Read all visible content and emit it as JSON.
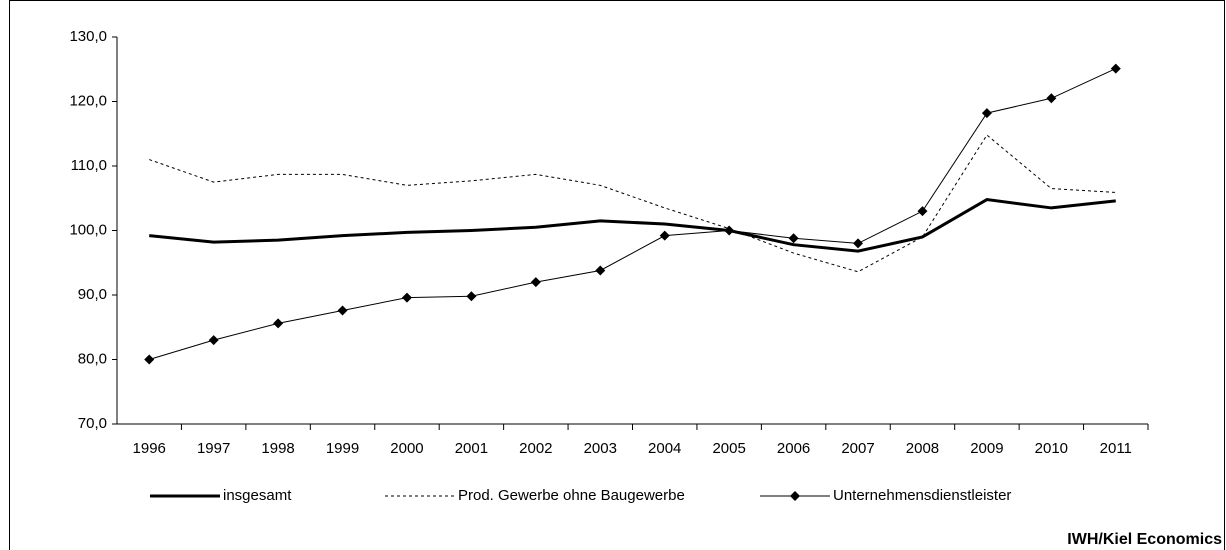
{
  "chart_data": {
    "type": "line",
    "categories": [
      "1996",
      "1997",
      "1998",
      "1999",
      "2000",
      "2001",
      "2002",
      "2003",
      "2004",
      "2005",
      "2006",
      "2007",
      "2008",
      "2009",
      "2010",
      "2011"
    ],
    "series": [
      {
        "name": "insgesamt",
        "color": "#000000",
        "width": 3,
        "dash": "none",
        "marker": "none",
        "values": [
          99.2,
          98.2,
          98.5,
          99.2,
          99.7,
          100.0,
          100.5,
          101.5,
          101.0,
          100.0,
          97.8,
          96.8,
          99.0,
          104.8,
          103.5,
          104.6
        ]
      },
      {
        "name": "Prod. Gewerbe ohne Baugewerbe",
        "color": "#000000",
        "width": 1,
        "dash": "3,3",
        "marker": "none",
        "values": [
          111.0,
          107.5,
          108.7,
          108.7,
          107.0,
          107.7,
          108.7,
          107.0,
          103.5,
          100.3,
          96.5,
          93.6,
          99.0,
          114.8,
          106.5,
          105.9
        ]
      },
      {
        "name": "Unternehmensdienstleister",
        "color": "#000000",
        "width": 1,
        "dash": "none",
        "marker": "diamond",
        "values": [
          80.0,
          83.0,
          85.6,
          87.6,
          89.6,
          89.8,
          92.0,
          93.8,
          99.2,
          100.0,
          98.8,
          98.0,
          103.0,
          118.2,
          120.5,
          125.1
        ]
      }
    ],
    "ylim": [
      70,
      130
    ],
    "yticks": [
      {
        "value": 70,
        "label": "70,0"
      },
      {
        "value": 80,
        "label": "80,0"
      },
      {
        "value": 90,
        "label": "90,0"
      },
      {
        "value": 100,
        "label": "100,0"
      },
      {
        "value": 110,
        "label": "110,0"
      },
      {
        "value": 120,
        "label": "120,0"
      },
      {
        "value": 130,
        "label": "130,0"
      }
    ],
    "grid": false,
    "legend": "bottom",
    "source": "IWH/Kiel Economics"
  }
}
